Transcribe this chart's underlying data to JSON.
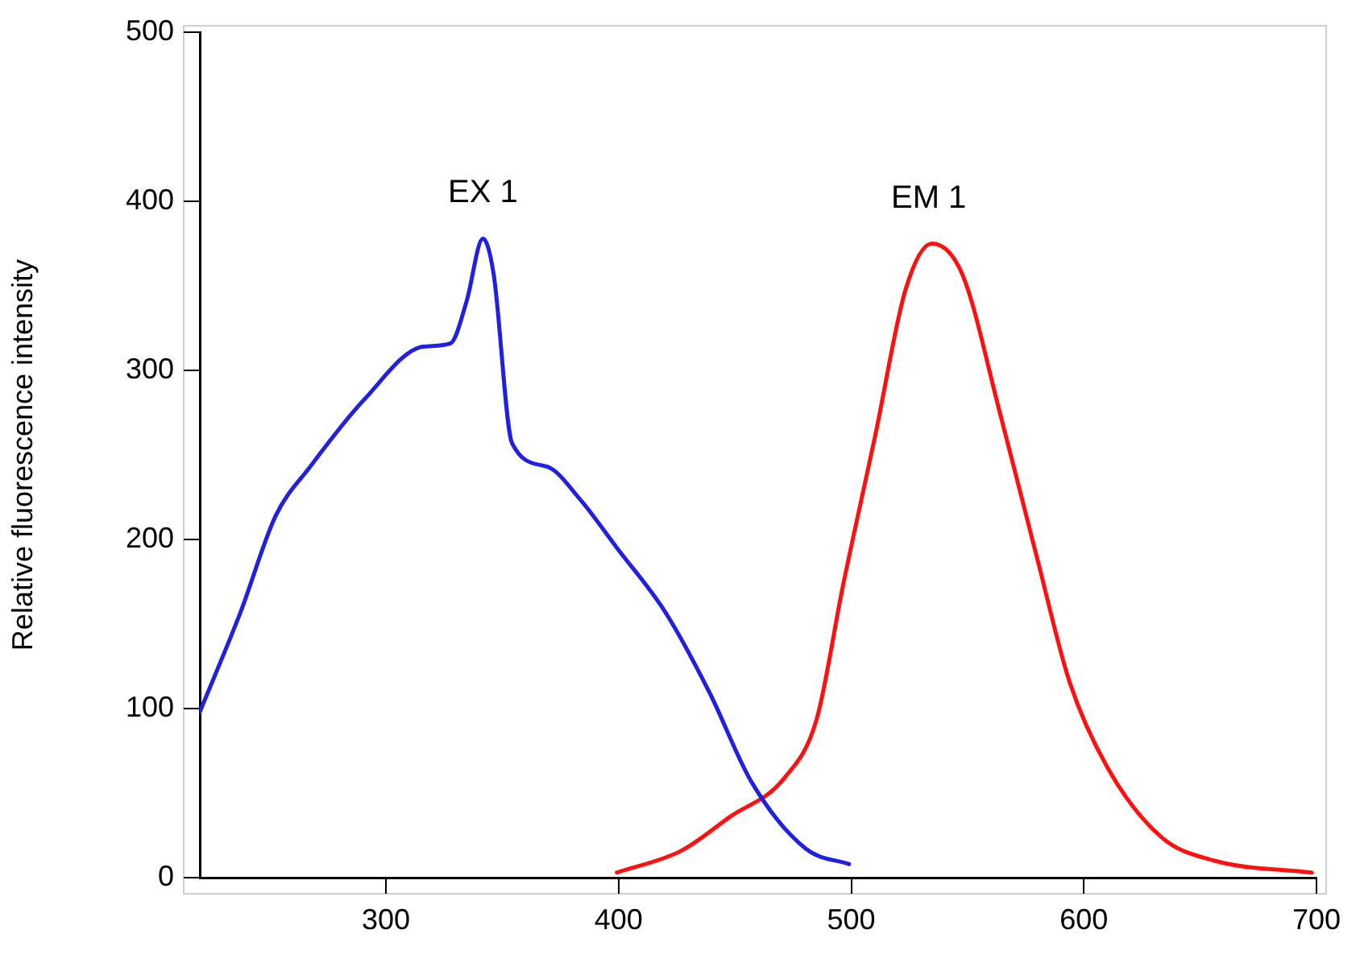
{
  "chart_data": {
    "type": "line",
    "ylabel": "Relative fluorescence intensity",
    "xlim": [
      220,
      700
    ],
    "xticks": [
      300,
      400,
      500,
      600,
      700
    ],
    "ylim": [
      0,
      500
    ],
    "yticks": [
      0,
      100,
      200,
      300,
      400,
      500
    ],
    "grid": false,
    "legend": false,
    "marker": "none",
    "line_style": "solid",
    "series": [
      {
        "name": "EX 1",
        "color": "#2020e0",
        "x": [
          220,
          237.5,
          252.6,
          267.4,
          290.8,
          316,
          327.8,
          334.7,
          341.7,
          346.3,
          354.2,
          369.4,
          383.3,
          399.3,
          420.1,
          438.9,
          457.4,
          480.6,
          499.1
        ],
        "values": [
          98,
          157,
          214,
          243,
          283,
          314,
          316,
          341,
          378,
          357,
          257,
          243,
          224,
          195,
          157,
          110,
          56,
          17,
          8
        ]
      },
      {
        "name": "EM 1",
        "color": "#ff1010",
        "x": [
          399.3,
          427.1,
          447.9,
          471.3,
          485.2,
          496.5,
          510.4,
          523.4,
          534.7,
          547.7,
          563.9,
          579.9,
          593.8,
          610.2,
          633.3,
          656.3,
          698
        ],
        "values": [
          3,
          16,
          36,
          59,
          94,
          173,
          262,
          348,
          375,
          357,
          275,
          189,
          116,
          65,
          24,
          10,
          3
        ]
      }
    ]
  }
}
